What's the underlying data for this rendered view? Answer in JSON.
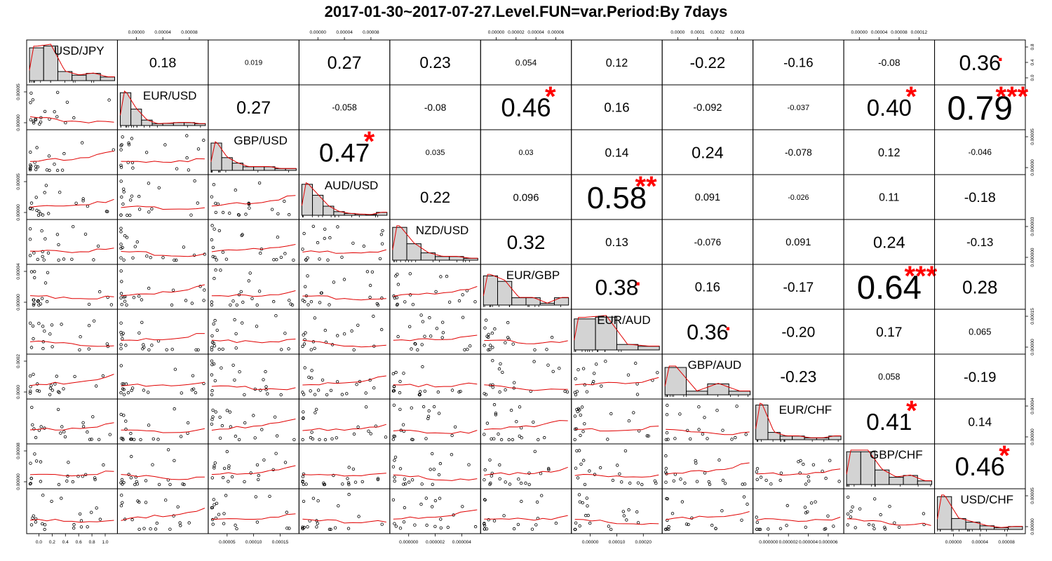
{
  "title": "2017-01-30~2017-07-27.Level.FUN=var.Period:By 7days",
  "chart_data": {
    "type": "scatter",
    "subtype": "correlation-matrix (PerformanceAnalytics chart.Correlation)",
    "variables": [
      "USD/JPY",
      "EUR/USD",
      "GBP/USD",
      "AUD/USD",
      "NZD/USD",
      "EUR/GBP",
      "EUR/AUD",
      "GBP/AUD",
      "EUR/CHF",
      "GBP/CHF",
      "USD/CHF"
    ],
    "correlations": [
      {
        "row": "USD/JPY",
        "col": "EUR/USD",
        "label": "0.18",
        "stars": ""
      },
      {
        "row": "USD/JPY",
        "col": "GBP/USD",
        "label": "0.019",
        "stars": ""
      },
      {
        "row": "USD/JPY",
        "col": "AUD/USD",
        "label": "0.27",
        "stars": ""
      },
      {
        "row": "USD/JPY",
        "col": "NZD/USD",
        "label": "0.23",
        "stars": ""
      },
      {
        "row": "USD/JPY",
        "col": "EUR/GBP",
        "label": "0.054",
        "stars": ""
      },
      {
        "row": "USD/JPY",
        "col": "EUR/AUD",
        "label": "0.12",
        "stars": ""
      },
      {
        "row": "USD/JPY",
        "col": "GBP/AUD",
        "label": "-0.22",
        "stars": ""
      },
      {
        "row": "USD/JPY",
        "col": "EUR/CHF",
        "label": "-0.16",
        "stars": ""
      },
      {
        "row": "USD/JPY",
        "col": "GBP/CHF",
        "label": "-0.08",
        "stars": ""
      },
      {
        "row": "USD/JPY",
        "col": "USD/CHF",
        "label": "0.36",
        "stars": "."
      },
      {
        "row": "EUR/USD",
        "col": "GBP/USD",
        "label": "0.27",
        "stars": ""
      },
      {
        "row": "EUR/USD",
        "col": "AUD/USD",
        "label": "-0.058",
        "stars": ""
      },
      {
        "row": "EUR/USD",
        "col": "NZD/USD",
        "label": "-0.08",
        "stars": ""
      },
      {
        "row": "EUR/USD",
        "col": "EUR/GBP",
        "label": "0.46",
        "stars": "*"
      },
      {
        "row": "EUR/USD",
        "col": "EUR/AUD",
        "label": "0.16",
        "stars": ""
      },
      {
        "row": "EUR/USD",
        "col": "GBP/AUD",
        "label": "-0.092",
        "stars": ""
      },
      {
        "row": "EUR/USD",
        "col": "EUR/CHF",
        "label": "-0.037",
        "stars": ""
      },
      {
        "row": "EUR/USD",
        "col": "GBP/CHF",
        "label": "0.40",
        "stars": "*"
      },
      {
        "row": "EUR/USD",
        "col": "USD/CHF",
        "label": "0.79",
        "stars": "***"
      },
      {
        "row": "GBP/USD",
        "col": "AUD/USD",
        "label": "0.47",
        "stars": "*"
      },
      {
        "row": "GBP/USD",
        "col": "NZD/USD",
        "label": "0.035",
        "stars": ""
      },
      {
        "row": "GBP/USD",
        "col": "EUR/GBP",
        "label": "0.03",
        "stars": ""
      },
      {
        "row": "GBP/USD",
        "col": "EUR/AUD",
        "label": "0.14",
        "stars": ""
      },
      {
        "row": "GBP/USD",
        "col": "GBP/AUD",
        "label": "0.24",
        "stars": ""
      },
      {
        "row": "GBP/USD",
        "col": "EUR/CHF",
        "label": "-0.078",
        "stars": ""
      },
      {
        "row": "GBP/USD",
        "col": "GBP/CHF",
        "label": "0.12",
        "stars": ""
      },
      {
        "row": "GBP/USD",
        "col": "USD/CHF",
        "label": "-0.046",
        "stars": ""
      },
      {
        "row": "AUD/USD",
        "col": "NZD/USD",
        "label": "0.22",
        "stars": ""
      },
      {
        "row": "AUD/USD",
        "col": "EUR/GBP",
        "label": "0.096",
        "stars": ""
      },
      {
        "row": "AUD/USD",
        "col": "EUR/AUD",
        "label": "0.58",
        "stars": "**"
      },
      {
        "row": "AUD/USD",
        "col": "GBP/AUD",
        "label": "0.091",
        "stars": ""
      },
      {
        "row": "AUD/USD",
        "col": "EUR/CHF",
        "label": "-0.026",
        "stars": ""
      },
      {
        "row": "AUD/USD",
        "col": "GBP/CHF",
        "label": "0.11",
        "stars": ""
      },
      {
        "row": "AUD/USD",
        "col": "USD/CHF",
        "label": "-0.18",
        "stars": ""
      },
      {
        "row": "NZD/USD",
        "col": "EUR/GBP",
        "label": "0.32",
        "stars": ""
      },
      {
        "row": "NZD/USD",
        "col": "EUR/AUD",
        "label": "0.13",
        "stars": ""
      },
      {
        "row": "NZD/USD",
        "col": "GBP/AUD",
        "label": "-0.076",
        "stars": ""
      },
      {
        "row": "NZD/USD",
        "col": "EUR/CHF",
        "label": "0.091",
        "stars": ""
      },
      {
        "row": "NZD/USD",
        "col": "GBP/CHF",
        "label": "0.24",
        "stars": ""
      },
      {
        "row": "NZD/USD",
        "col": "USD/CHF",
        "label": "-0.13",
        "stars": ""
      },
      {
        "row": "EUR/GBP",
        "col": "EUR/AUD",
        "label": "0.38",
        "stars": "."
      },
      {
        "row": "EUR/GBP",
        "col": "GBP/AUD",
        "label": "0.16",
        "stars": ""
      },
      {
        "row": "EUR/GBP",
        "col": "EUR/CHF",
        "label": "-0.17",
        "stars": ""
      },
      {
        "row": "EUR/GBP",
        "col": "GBP/CHF",
        "label": "0.64",
        "stars": "***"
      },
      {
        "row": "EUR/GBP",
        "col": "USD/CHF",
        "label": "0.28",
        "stars": ""
      },
      {
        "row": "EUR/AUD",
        "col": "GBP/AUD",
        "label": "0.36",
        "stars": "."
      },
      {
        "row": "EUR/AUD",
        "col": "EUR/CHF",
        "label": "-0.20",
        "stars": ""
      },
      {
        "row": "EUR/AUD",
        "col": "GBP/CHF",
        "label": "0.17",
        "stars": ""
      },
      {
        "row": "EUR/AUD",
        "col": "USD/CHF",
        "label": "0.065",
        "stars": ""
      },
      {
        "row": "GBP/AUD",
        "col": "EUR/CHF",
        "label": "-0.23",
        "stars": ""
      },
      {
        "row": "GBP/AUD",
        "col": "GBP/CHF",
        "label": "0.058",
        "stars": ""
      },
      {
        "row": "GBP/AUD",
        "col": "USD/CHF",
        "label": "-0.19",
        "stars": ""
      },
      {
        "row": "EUR/CHF",
        "col": "GBP/CHF",
        "label": "0.41",
        "stars": "*"
      },
      {
        "row": "EUR/CHF",
        "col": "USD/CHF",
        "label": "0.14",
        "stars": ""
      },
      {
        "row": "GBP/CHF",
        "col": "USD/CHF",
        "label": "0.46",
        "stars": "*"
      }
    ],
    "histograms": {
      "USD/JPY": [
        0.9,
        0.95,
        0.25,
        0.15,
        0.2,
        0.1
      ],
      "EUR/USD": [
        0.9,
        0.45,
        0.15,
        0.05,
        0.06,
        0.08,
        0.08,
        0.05
      ],
      "GBP/USD": [
        0.75,
        0.35,
        0.2,
        0.1,
        0.1,
        0.1,
        0.05,
        0.05
      ],
      "AUD/USD": [
        0.85,
        0.55,
        0.25,
        0.1,
        0.05,
        0.03,
        0.02,
        0.08
      ],
      "NZD/USD": [
        0.9,
        0.45,
        0.2,
        0.1,
        0.1,
        0.05
      ],
      "EUR/GBP": [
        0.8,
        0.65,
        0.2,
        0.2,
        0.05,
        0.2
      ],
      "EUR/AUD": [
        0.85,
        0.9,
        0.15,
        0.1
      ],
      "GBP/AUD": [
        0.75,
        0.1,
        0.3,
        0.1
      ],
      "EUR/CHF": [
        0.95,
        0.2,
        0.1,
        0.1,
        0.05,
        0.05,
        0.1
      ],
      "GBP/CHF": [
        0.9,
        0.9,
        0.4,
        0.2,
        0.25,
        0.1
      ],
      "USD/CHF": [
        0.9,
        0.3,
        0.2,
        0.1,
        0.05,
        0.08
      ]
    },
    "axis_ticks": {
      "bottom": {
        "USD/JPY": [
          "0.0",
          "0.2",
          "0.4",
          "0.6",
          "0.8",
          "1.0"
        ],
        "GBP/USD": [
          "0.00005",
          "0.00010",
          "0.00015"
        ],
        "NZD/USD": [
          "0.000000",
          "0.000002",
          "0.000004"
        ],
        "EUR/AUD": [
          "0.00000",
          "0.00010",
          "0.00020"
        ],
        "EUR/CHF": [
          "0.000000",
          "0.000002",
          "0.000004",
          "0.000006"
        ],
        "USD/CHF": [
          "0.00000",
          "0.00004",
          "0.00008"
        ]
      },
      "top": {
        "EUR/USD": [
          "0.00000",
          "0.00004",
          "0.00008"
        ],
        "AUD/USD": [
          "0.00000",
          "0.00004",
          "0.00008"
        ],
        "EUR/GBP": [
          "0.00000",
          "0.00002",
          "0.00004",
          "0.00006"
        ],
        "GBP/AUD": [
          "0.0000",
          "0.0001",
          "0.0002",
          "0.0003"
        ],
        "GBP/CHF": [
          "0.00000",
          "0.00004",
          "0.00008",
          "0.00012"
        ]
      },
      "left": {
        "EUR/USD": [
          "0.00000",
          "0.00005"
        ],
        "AUD/USD": [
          "0.00000",
          "0.00005"
        ],
        "EUR/GBP": [
          "0.00000",
          "0.00004"
        ],
        "GBP/AUD": [
          "0.0000",
          "0.0002"
        ],
        "GBP/CHF": [
          "0.00000",
          "0.00008"
        ]
      },
      "right": {
        "USD/JPY": [
          "0.0",
          "0.4",
          "0.8"
        ],
        "GBP/USD": [
          "0.00000",
          "0.00005"
        ],
        "NZD/USD": [
          "0.000000",
          "0.000003"
        ],
        "EUR/AUD": [
          "0.00000",
          "0.00015"
        ],
        "EUR/CHF": [
          "0.00000",
          "0.00004"
        ],
        "USD/CHF": [
          "0.00000",
          "0.00005"
        ]
      }
    },
    "colors": {
      "points": "#000000",
      "smooth_line": "#e00000",
      "density_line": "#e00000",
      "histogram_fill": "#d3d3d3",
      "stars": "#ff0000",
      "correlation_text": "#000000"
    },
    "grid": false,
    "legend": "none"
  }
}
